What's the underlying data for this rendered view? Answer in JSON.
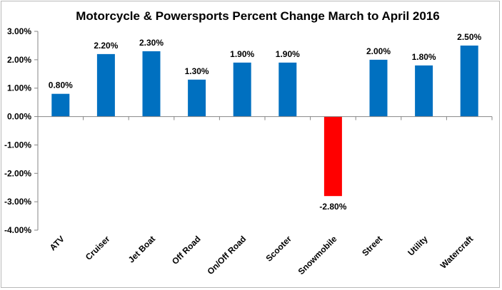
{
  "chart_data": {
    "type": "bar",
    "title": "Motorcycle & Powersports Percent Change March to April 2016",
    "categories": [
      "ATV",
      "Cruiser",
      "Jet Boat",
      "Off Road",
      "On/Off Road",
      "Scooter",
      "Snowmobile",
      "Street",
      "Utility",
      "Watercraft"
    ],
    "values": [
      0.8,
      2.2,
      2.3,
      1.3,
      1.9,
      1.9,
      -2.8,
      2.0,
      1.8,
      2.5
    ],
    "data_labels": [
      "0.80%",
      "2.20%",
      "2.30%",
      "1.30%",
      "1.90%",
      "1.90%",
      "-2.80%",
      "2.00%",
      "1.80%",
      "2.50%"
    ],
    "y_tick_values": [
      3,
      2,
      1,
      0,
      -1,
      -2,
      -3,
      -4
    ],
    "y_tick_labels": [
      "3.00%",
      "2.00%",
      "1.00%",
      "0.00%",
      "-1.00%",
      "-2.00%",
      "-3.00%",
      "-4.00%"
    ],
    "ylim": [
      -4,
      3
    ],
    "xlabel": "",
    "ylabel": "",
    "grid": false,
    "legend": "none",
    "colors": {
      "positive": "#0070c0",
      "negative": "#ff0000",
      "axis": "#868686"
    }
  }
}
